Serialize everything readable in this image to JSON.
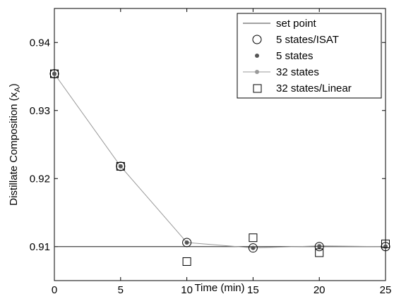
{
  "chart_data": {
    "type": "line",
    "xlabel": "Time (min)",
    "ylabel_main": "Distillate Composition (x",
    "ylabel_sub": "A",
    "ylabel_close": ")",
    "xlim": [
      0,
      25
    ],
    "ylim": [
      0.905,
      0.945
    ],
    "x_ticks": [
      0,
      5,
      10,
      15,
      20,
      25
    ],
    "x_tick_labels": [
      "0",
      "5",
      "10",
      "15",
      "20",
      "25"
    ],
    "y_ticks": [
      0.91,
      0.92,
      0.93,
      0.94
    ],
    "y_tick_labels": [
      "0.91",
      "0.92",
      "0.93",
      "0.94"
    ],
    "grid": false,
    "legend_position": "top-right",
    "series": [
      {
        "name": "set point",
        "marker": "line",
        "color": "#444444",
        "x": [
          0,
          25
        ],
        "y": [
          0.91,
          0.91
        ]
      },
      {
        "name": "5 states/ISAT",
        "marker": "open-circle",
        "color": "#000000",
        "x": [
          0,
          5,
          10,
          15,
          20,
          25
        ],
        "y": [
          0.9354,
          0.9218,
          0.9106,
          0.9098,
          0.91,
          0.91
        ]
      },
      {
        "name": "5 states",
        "marker": "filled-dot",
        "color": "#555555",
        "x": [
          0,
          5,
          10,
          15,
          20,
          25
        ],
        "y": [
          0.9354,
          0.9218,
          0.9106,
          0.9098,
          0.91,
          0.91
        ]
      },
      {
        "name": "32 states",
        "marker": "line-dot",
        "color": "#999999",
        "x": [
          0,
          5,
          10,
          15,
          20,
          25
        ],
        "y": [
          0.9354,
          0.9218,
          0.9106,
          0.9098,
          0.9101,
          0.91
        ]
      },
      {
        "name": "32 states/Linear",
        "marker": "open-square",
        "color": "#000000",
        "x": [
          0,
          5,
          10,
          15,
          20,
          25
        ],
        "y": [
          0.9354,
          0.9218,
          0.9078,
          0.9113,
          0.9091,
          0.9104
        ]
      }
    ]
  }
}
